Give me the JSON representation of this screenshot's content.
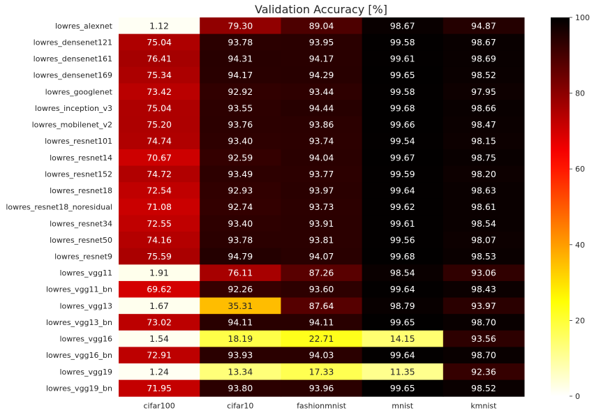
{
  "chart_data": {
    "type": "heatmap",
    "title": "Validation Accuracy [%]",
    "rows": [
      "lowres_alexnet",
      "lowres_densenet121",
      "lowres_densenet161",
      "lowres_densenet169",
      "lowres_googlenet",
      "lowres_inception_v3",
      "lowres_mobilenet_v2",
      "lowres_resnet101",
      "lowres_resnet14",
      "lowres_resnet152",
      "lowres_resnet18",
      "lowres_resnet18_noresidual",
      "lowres_resnet34",
      "lowres_resnet50",
      "lowres_resnet9",
      "lowres_vgg11",
      "lowres_vgg11_bn",
      "lowres_vgg13",
      "lowres_vgg13_bn",
      "lowres_vgg16",
      "lowres_vgg16_bn",
      "lowres_vgg19",
      "lowres_vgg19_bn"
    ],
    "columns": [
      "cifar100",
      "cifar10",
      "fashionmnist",
      "mnist",
      "kmnist"
    ],
    "values": [
      [
        1.12,
        79.3,
        89.04,
        98.67,
        94.87
      ],
      [
        75.04,
        93.78,
        93.95,
        99.58,
        98.67
      ],
      [
        76.41,
        94.31,
        94.17,
        99.61,
        98.69
      ],
      [
        75.34,
        94.17,
        94.29,
        99.65,
        98.52
      ],
      [
        73.42,
        92.92,
        93.44,
        99.58,
        97.95
      ],
      [
        75.04,
        93.55,
        94.44,
        99.68,
        98.66
      ],
      [
        75.2,
        93.76,
        93.86,
        99.66,
        98.47
      ],
      [
        74.74,
        93.4,
        93.74,
        99.54,
        98.15
      ],
      [
        70.67,
        92.59,
        94.04,
        99.67,
        98.75
      ],
      [
        74.72,
        93.49,
        93.77,
        99.59,
        98.2
      ],
      [
        72.54,
        92.93,
        93.97,
        99.64,
        98.63
      ],
      [
        71.08,
        92.74,
        93.73,
        99.62,
        98.61
      ],
      [
        72.55,
        93.4,
        93.91,
        99.61,
        98.54
      ],
      [
        74.16,
        93.78,
        93.81,
        99.56,
        98.07
      ],
      [
        75.59,
        94.79,
        94.07,
        99.68,
        98.53
      ],
      [
        1.91,
        76.11,
        87.26,
        98.54,
        93.06
      ],
      [
        69.62,
        92.26,
        93.6,
        99.64,
        98.43
      ],
      [
        1.67,
        35.31,
        87.64,
        98.79,
        93.97
      ],
      [
        73.02,
        94.11,
        94.11,
        99.65,
        98.7
      ],
      [
        1.54,
        18.19,
        22.71,
        14.15,
        93.56
      ],
      [
        72.91,
        93.93,
        94.03,
        99.64,
        98.7
      ],
      [
        1.24,
        13.34,
        17.33,
        11.35,
        92.36
      ],
      [
        71.95,
        93.8,
        93.96,
        99.65,
        98.52
      ]
    ],
    "colormap": "hot_r",
    "vmin": 0,
    "vmax": 100,
    "colorbar_ticks": [
      0,
      20,
      40,
      60,
      80,
      100
    ],
    "annotated": true,
    "value_format": "2 decimals"
  }
}
